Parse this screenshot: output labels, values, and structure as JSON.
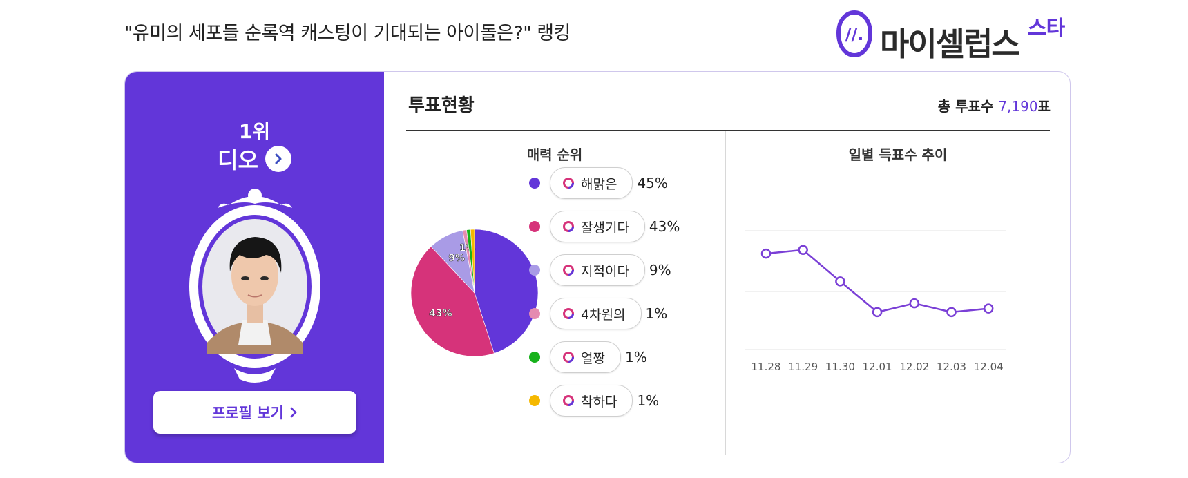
{
  "page_title": "\"유미의 세포들 순록역 캐스팅이 기대되는 아이돌은?\" 랭킹",
  "brand": {
    "name": "마이셀럽스",
    "sup": "스타",
    "color": "#6236d9"
  },
  "left": {
    "rank": "1위",
    "name": "디오",
    "profile_button": "프로필 보기"
  },
  "section": {
    "title": "투표현황",
    "total_label": "총 투표수",
    "total_value": "7,190",
    "total_unit": "표"
  },
  "charm": {
    "title": "매력 순위",
    "items": [
      {
        "label": "해맑은",
        "pct": "45%",
        "color": "#6236d9"
      },
      {
        "label": "잘생기다",
        "pct": "43%",
        "color": "#d6337a"
      },
      {
        "label": "지적이다",
        "pct": "9%",
        "color": "#a99be6"
      },
      {
        "label": "4차원의",
        "pct": "1%",
        "color": "#e58bb0"
      },
      {
        "label": "얼짱",
        "pct": "1%",
        "color": "#17b11b"
      },
      {
        "label": "착하다",
        "pct": "1%",
        "color": "#f5b800"
      }
    ]
  },
  "trend": {
    "title": "일별 득표수 추이"
  },
  "chart_data": [
    {
      "type": "pie",
      "title": "매력 순위",
      "categories": [
        "해맑은",
        "잘생기다",
        "지적이다",
        "4차원의",
        "얼짱",
        "착하다"
      ],
      "values": [
        45,
        43,
        9,
        1,
        1,
        1
      ],
      "colors": [
        "#6236d9",
        "#d6337a",
        "#a99be6",
        "#e58bb0",
        "#17b11b",
        "#f5b800"
      ],
      "data_labels": [
        "",
        "43%",
        "9%",
        "1%",
        "",
        ""
      ]
    },
    {
      "type": "line",
      "title": "일별 득표수 추이",
      "categories": [
        "11.28",
        "11.29",
        "11.30",
        "12.01",
        "12.02",
        "12.03",
        "12.04"
      ],
      "series": [
        {
          "values": [
            0.82,
            0.87,
            0.44,
            0.02,
            0.14,
            0.02,
            0.07
          ],
          "color": "#7a3fd6"
        }
      ],
      "grid": true
    }
  ]
}
